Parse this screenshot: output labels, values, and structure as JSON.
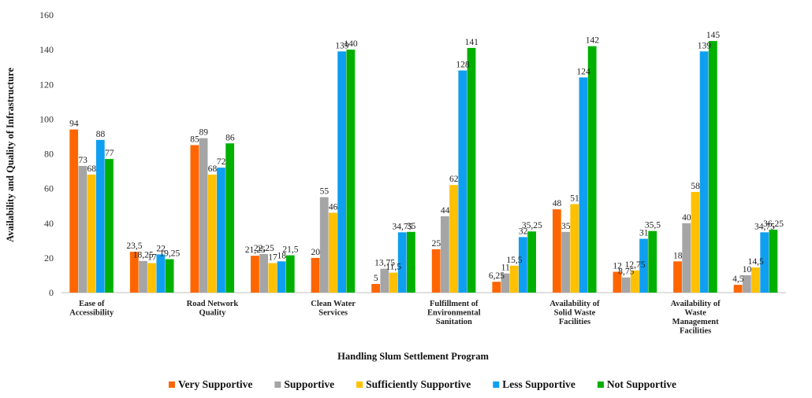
{
  "chart_data": {
    "type": "bar",
    "title": "",
    "xlabel": "Handling Slum Settlement Program",
    "ylabel": "Availability and Quality of Infrastructure",
    "ylim": [
      0,
      160
    ],
    "yticks": [
      0,
      20,
      40,
      60,
      80,
      100,
      120,
      140,
      160
    ],
    "grid": false,
    "legend_position": "bottom",
    "categories": [
      [
        "Ease of",
        "Accessibility"
      ],
      [],
      [
        "Road Network",
        "Quality"
      ],
      [],
      [
        "Clean Water",
        "Services"
      ],
      [],
      [
        "Fulfillment of",
        "Environmental",
        "Sanitation"
      ],
      [],
      [
        "Availability of",
        "Solid Waste",
        "Facilities"
      ],
      [],
      [
        "Availability of",
        "Waste",
        "Management",
        "Facilities"
      ],
      []
    ],
    "series": [
      {
        "name": "Very Supportive",
        "color": "#ff6600",
        "values": [
          94,
          23.5,
          85,
          21.25,
          20,
          5,
          25,
          6.25,
          48,
          12,
          18,
          4.5
        ],
        "labels": [
          "94",
          "23,5",
          "85",
          "21,25",
          "20",
          "5",
          "25",
          "6,25",
          "48",
          "12",
          "18",
          "4,5"
        ]
      },
      {
        "name": "Supportive",
        "color": "#a5a5a5",
        "values": [
          73,
          18.25,
          89,
          22.25,
          55,
          13.75,
          44,
          11,
          35,
          8.75,
          40,
          10
        ],
        "labels": [
          "73",
          "18,25",
          "89",
          "22,25",
          "55",
          "13,75",
          "44",
          "11",
          "35",
          "8,75",
          "40",
          "10"
        ]
      },
      {
        "name": "Sufficiently Supportive",
        "color": "#ffc000",
        "values": [
          68,
          17,
          68,
          17,
          46,
          11.5,
          62,
          15.5,
          51,
          12.75,
          58,
          14.5
        ],
        "labels": [
          "68",
          "17",
          "68",
          "17",
          "46",
          "11,5",
          "62",
          "15,5",
          "51",
          "12,75",
          "58",
          "14,5"
        ]
      },
      {
        "name": "Less Supportive",
        "color": "#0f9ff0",
        "values": [
          88,
          22,
          72,
          18,
          139,
          34.75,
          128,
          32,
          124,
          31,
          139,
          34.75
        ],
        "labels": [
          "88",
          "22",
          "72",
          "18",
          "139",
          "34,75",
          "128",
          "32",
          "124",
          "31",
          "139",
          "34,75"
        ]
      },
      {
        "name": "Not Supportive",
        "color": "#00b000",
        "values": [
          77,
          19.25,
          86,
          21.5,
          140,
          35,
          141,
          35.25,
          142,
          35.5,
          145,
          36.25
        ],
        "labels": [
          "77",
          "19,25",
          "86",
          "21,5",
          "140",
          "35",
          "141",
          "35,25",
          "142",
          "35,5",
          "145",
          "36,25"
        ]
      }
    ]
  }
}
